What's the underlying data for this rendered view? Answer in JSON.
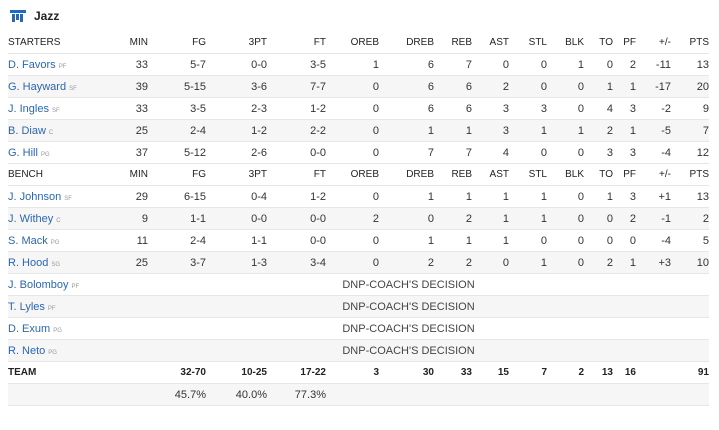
{
  "team": {
    "name": "Jazz"
  },
  "columns": [
    "MIN",
    "FG",
    "3PT",
    "FT",
    "OREB",
    "DREB",
    "REB",
    "AST",
    "STL",
    "BLK",
    "TO",
    "PF",
    "+/-",
    "PTS"
  ],
  "starters_label": "STARTERS",
  "bench_label": "BENCH",
  "starters": [
    {
      "name": "D. Favors",
      "pos": "PF",
      "stats": [
        "33",
        "5-7",
        "0-0",
        "3-5",
        "1",
        "6",
        "7",
        "0",
        "0",
        "1",
        "0",
        "2",
        "-11",
        "13"
      ]
    },
    {
      "name": "G. Hayward",
      "pos": "SF",
      "stats": [
        "39",
        "5-15",
        "3-6",
        "7-7",
        "0",
        "6",
        "6",
        "2",
        "0",
        "0",
        "1",
        "1",
        "-17",
        "20"
      ]
    },
    {
      "name": "J. Ingles",
      "pos": "SF",
      "stats": [
        "33",
        "3-5",
        "2-3",
        "1-2",
        "0",
        "6",
        "6",
        "3",
        "3",
        "0",
        "4",
        "3",
        "-2",
        "9"
      ]
    },
    {
      "name": "B. Diaw",
      "pos": "C",
      "stats": [
        "25",
        "2-4",
        "1-2",
        "2-2",
        "0",
        "1",
        "1",
        "3",
        "1",
        "1",
        "2",
        "1",
        "-5",
        "7"
      ]
    },
    {
      "name": "G. Hill",
      "pos": "PG",
      "stats": [
        "37",
        "5-12",
        "2-6",
        "0-0",
        "0",
        "7",
        "7",
        "4",
        "0",
        "0",
        "3",
        "3",
        "-4",
        "12"
      ]
    }
  ],
  "bench": [
    {
      "name": "J. Johnson",
      "pos": "SF",
      "stats": [
        "29",
        "6-15",
        "0-4",
        "1-2",
        "0",
        "1",
        "1",
        "1",
        "1",
        "0",
        "1",
        "3",
        "+1",
        "13"
      ]
    },
    {
      "name": "J. Withey",
      "pos": "C",
      "stats": [
        "9",
        "1-1",
        "0-0",
        "0-0",
        "2",
        "0",
        "2",
        "1",
        "1",
        "0",
        "0",
        "2",
        "-1",
        "2"
      ]
    },
    {
      "name": "S. Mack",
      "pos": "PG",
      "stats": [
        "11",
        "2-4",
        "1-1",
        "0-0",
        "0",
        "1",
        "1",
        "1",
        "0",
        "0",
        "0",
        "0",
        "-4",
        "5"
      ]
    },
    {
      "name": "R. Hood",
      "pos": "SG",
      "stats": [
        "25",
        "3-7",
        "1-3",
        "3-4",
        "0",
        "2",
        "2",
        "0",
        "1",
        "0",
        "2",
        "1",
        "+3",
        "10"
      ]
    }
  ],
  "dnp": [
    {
      "name": "J. Bolomboy",
      "pos": "PF",
      "note": "DNP-COACH'S DECISION"
    },
    {
      "name": "T. Lyles",
      "pos": "PF",
      "note": "DNP-COACH'S DECISION"
    },
    {
      "name": "D. Exum",
      "pos": "PG",
      "note": "DNP-COACH'S DECISION"
    },
    {
      "name": "R. Neto",
      "pos": "PG",
      "note": "DNP-COACH'S DECISION"
    }
  ],
  "totals": {
    "label": "TEAM",
    "stats": [
      "",
      "32-70",
      "10-25",
      "17-22",
      "3",
      "30",
      "33",
      "15",
      "7",
      "2",
      "13",
      "16",
      "",
      "91"
    ]
  },
  "percentages": [
    "",
    "45.7%",
    "40.0%",
    "77.3%",
    "",
    "",
    "",
    "",
    "",
    "",
    "",
    "",
    "",
    ""
  ],
  "colors": {
    "link": "#2b66b0",
    "logo": "#2b66b0",
    "row_alt": "#f6f6f6",
    "border": "#e6e6e6"
  }
}
